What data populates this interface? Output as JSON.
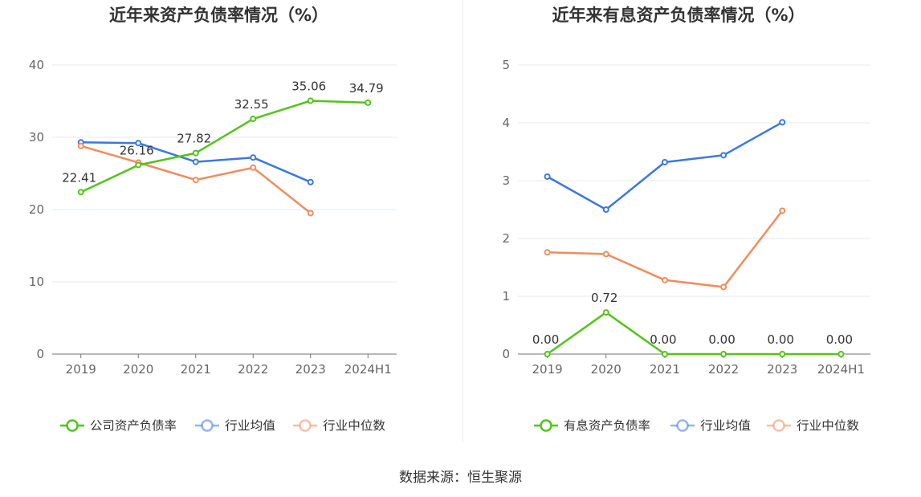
{
  "chart_data": [
    {
      "type": "line",
      "title": "近年来资产负债率情况（%）",
      "categories": [
        "2019",
        "2020",
        "2021",
        "2022",
        "2023",
        "2024H1"
      ],
      "yticks": [
        "0",
        "10",
        "20",
        "30",
        "40"
      ],
      "ylim": [
        0,
        40
      ],
      "grid": true,
      "legend_position": "bottom",
      "series": [
        {
          "name": "公司资产负债率",
          "color": "#52c41a",
          "values": [
            22.41,
            26.16,
            27.82,
            32.55,
            35.06,
            34.79
          ],
          "labels": [
            "22.41",
            "26.16",
            "27.82",
            "32.55",
            "35.06",
            "34.79"
          ]
        },
        {
          "name": "行业均值",
          "color": "#3a78e0",
          "values": [
            29.3,
            29.2,
            26.6,
            27.2,
            23.8,
            null
          ]
        },
        {
          "name": "行业中位数",
          "color": "#f08c5e",
          "values": [
            28.8,
            26.5,
            24.1,
            25.8,
            19.5,
            null
          ]
        }
      ]
    },
    {
      "type": "line",
      "title": "近年来有息资产负债率情况（%）",
      "categories": [
        "2019",
        "2020",
        "2021",
        "2022",
        "2023",
        "2024H1"
      ],
      "yticks": [
        "0",
        "1",
        "2",
        "3",
        "4",
        "5"
      ],
      "ylim": [
        0,
        5
      ],
      "grid": true,
      "legend_position": "bottom",
      "series": [
        {
          "name": "有息资产负债率",
          "color": "#52c41a",
          "values": [
            0.0,
            0.72,
            0.0,
            0.0,
            0.0,
            0.0
          ],
          "labels": [
            "0.00",
            "0.72",
            "0.00",
            "0.00",
            "0.00",
            "0.00"
          ]
        },
        {
          "name": "行业均值",
          "color": "#3a78e0",
          "values": [
            3.07,
            2.5,
            3.32,
            3.44,
            4.01,
            null
          ]
        },
        {
          "name": "行业中位数",
          "color": "#f08c5e",
          "values": [
            1.76,
            1.73,
            1.28,
            1.16,
            2.48,
            null
          ]
        }
      ]
    }
  ],
  "source": "数据来源：恒生聚源"
}
